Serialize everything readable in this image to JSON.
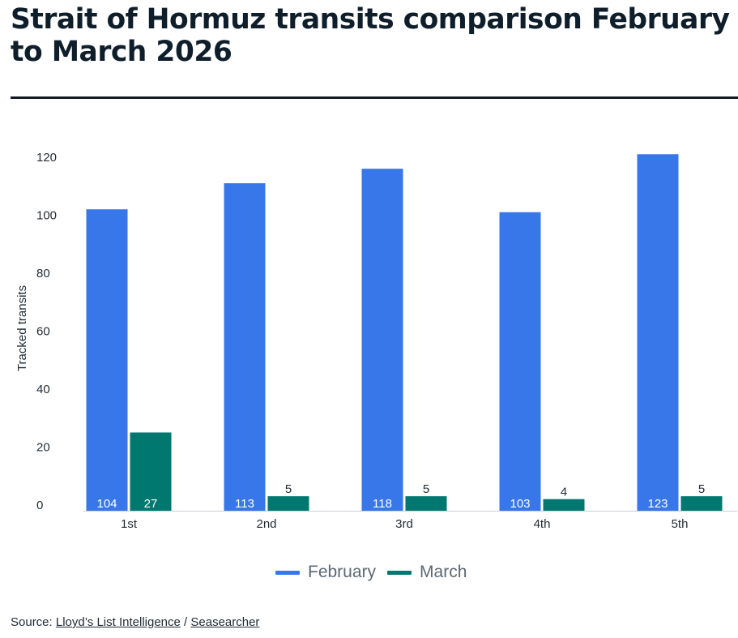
{
  "title": "Strait of Hormuz transits comparison February to March 2026",
  "colors": {
    "february": "#3777e9",
    "march": "#00786f",
    "axis": "#c9ced3"
  },
  "chart_data": {
    "type": "bar",
    "ylabel": "Tracked transits",
    "xlabel": "",
    "ylim": [
      0,
      120
    ],
    "yticks": [
      0,
      20,
      40,
      60,
      80,
      100,
      120
    ],
    "grid": false,
    "legend_position": "bottom",
    "categories": [
      "1st",
      "2nd",
      "3rd",
      "4th",
      "5th"
    ],
    "series": [
      {
        "name": "February",
        "values": [
          104,
          113,
          118,
          103,
          123
        ],
        "labels": [
          "104",
          "113",
          "118",
          "103",
          "123"
        ]
      },
      {
        "name": "March",
        "values": [
          27,
          5,
          5,
          4,
          5
        ],
        "labels": [
          "27",
          "5",
          "5",
          "4",
          "5"
        ]
      }
    ]
  },
  "legend": {
    "february": "February",
    "march": "March"
  },
  "source": {
    "prefix": "Source: ",
    "link1": "Lloyd’s List Intelligence",
    "separator": " / ",
    "link2": "Seasearcher"
  }
}
